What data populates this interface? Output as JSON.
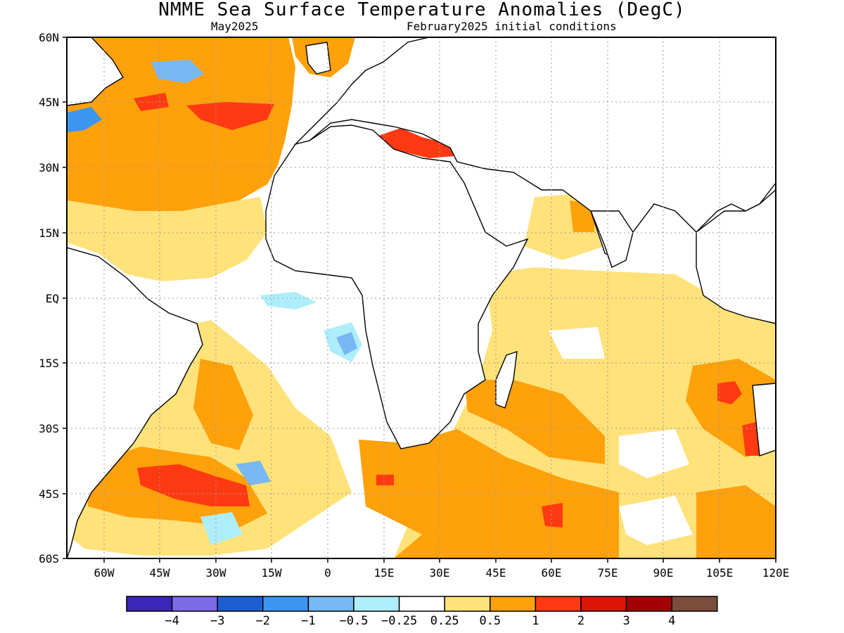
{
  "header": {
    "title": "NMME Sea Surface Temperature Anomalies (DegC)",
    "valid_month": "May2025",
    "initial_conditions": "February2025 initial conditions"
  },
  "map": {
    "lat_labels": [
      "60N",
      "45N",
      "30N",
      "15N",
      "EQ",
      "15S",
      "30S",
      "45S",
      "60S"
    ],
    "lon_labels": [
      "60W",
      "45W",
      "30W",
      "15W",
      "0",
      "15E",
      "30E",
      "45E",
      "60E",
      "75E",
      "90E",
      "105E",
      "120E"
    ],
    "lon_range": [
      -70,
      120
    ],
    "lat_range": [
      -60,
      60
    ],
    "grid": "dotted"
  },
  "colorbar": {
    "bins": [
      {
        "color": "#3b26b8"
      },
      {
        "color": "#7b6be6"
      },
      {
        "color": "#1d5fd0"
      },
      {
        "color": "#3c96f0"
      },
      {
        "color": "#77b8f5"
      },
      {
        "color": "#aeeefa"
      },
      {
        "color": "#ffffff"
      },
      {
        "color": "#ffe27a"
      },
      {
        "color": "#ffa10a"
      },
      {
        "color": "#ff3a12"
      },
      {
        "color": "#de1405"
      },
      {
        "color": "#a20205"
      },
      {
        "color": "#7a4d3d"
      }
    ],
    "labels": [
      "-4",
      "-3",
      "-2",
      "-1",
      "-0.5",
      "-0.25",
      "0.25",
      "0.5",
      "1",
      "2",
      "3",
      "4"
    ]
  }
}
